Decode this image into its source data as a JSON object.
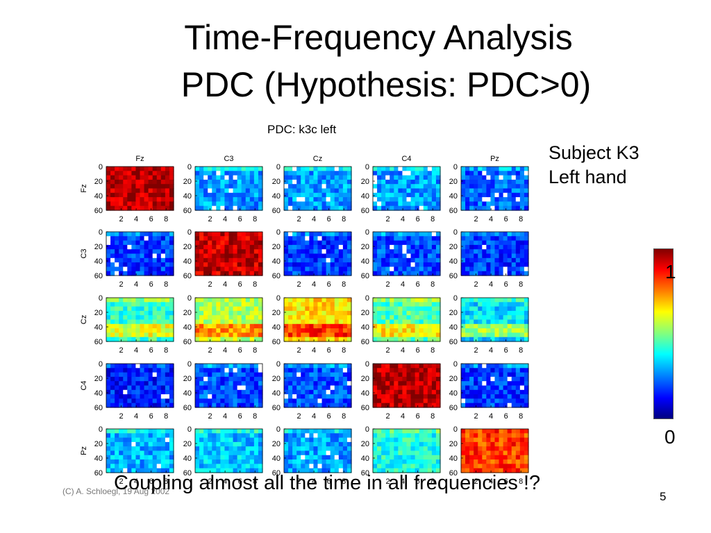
{
  "slide": {
    "title_line1": "Time-Frequency Analysis",
    "title_line2": "PDC (Hypothesis: PDC>0)",
    "subject_line1": "Subject K3",
    "subject_line2": "Left hand",
    "colorbar_max": "1",
    "colorbar_min": "0",
    "footer": "(C) A. Schloegl, 19 Aug 2002",
    "note": "Coupling almost all the time in all frequencies !?",
    "page_number": "5"
  },
  "chart_data": {
    "type": "heatmap",
    "title": "PDC: k3c left",
    "channels": [
      "Fz",
      "C3",
      "Cz",
      "C4",
      "Pz"
    ],
    "x_ticks": [
      2,
      4,
      6,
      8
    ],
    "y_ticks": [
      0,
      20,
      40,
      60
    ],
    "xlim": [
      0,
      9
    ],
    "ylim": [
      0,
      60
    ],
    "colorscale": "jet",
    "value_range": [
      0,
      1
    ],
    "mean_level": [
      [
        0.95,
        0.28,
        0.28,
        0.28,
        0.22
      ],
      [
        0.18,
        0.93,
        0.18,
        0.2,
        0.18
      ],
      [
        0.42,
        0.55,
        0.65,
        0.45,
        0.35
      ],
      [
        0.15,
        0.2,
        0.2,
        0.95,
        0.18
      ],
      [
        0.3,
        0.32,
        0.28,
        0.4,
        0.82
      ]
    ]
  }
}
